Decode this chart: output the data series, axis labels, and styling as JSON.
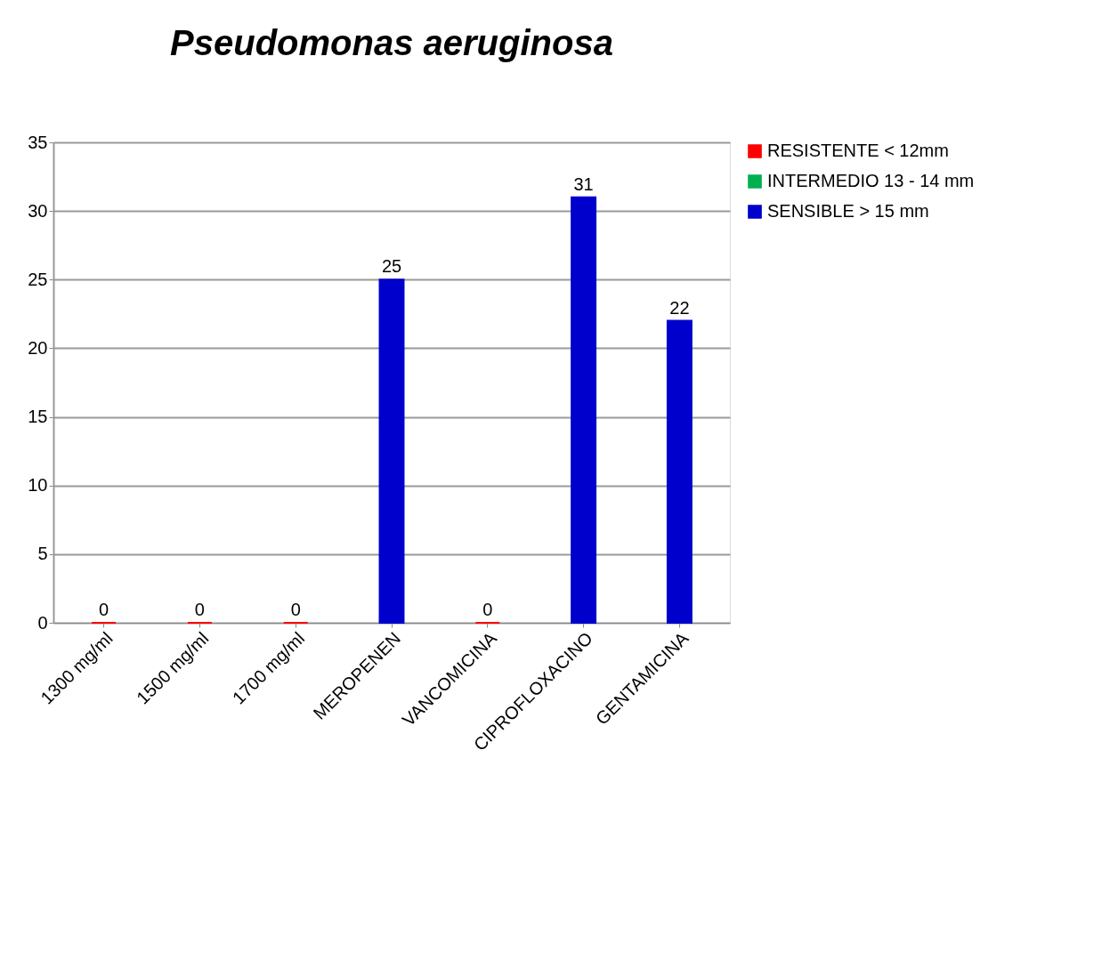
{
  "chart_data": {
    "type": "bar",
    "title": "Pseudomonas aeruginosa",
    "categories": [
      "1300 mg/ml",
      "1500 mg/ml",
      "1700 mg/ml",
      "MEROPENEN",
      "VANCOMICINA",
      "CIPROFLOXACINO",
      "GENTAMICINA"
    ],
    "series": [
      {
        "name": "RESISTENTE < 12mm",
        "color": "#ff0000",
        "values": [
          0,
          0,
          0,
          null,
          0,
          null,
          null
        ]
      },
      {
        "name": "INTERMEDIO 13 - 14 mm",
        "color": "#00b050",
        "values": [
          null,
          null,
          null,
          null,
          null,
          null,
          null
        ]
      },
      {
        "name": "SENSIBLE > 15 mm",
        "color": "#0000cc",
        "values": [
          null,
          null,
          null,
          25,
          null,
          31,
          22
        ]
      }
    ],
    "ylim": [
      0,
      35
    ],
    "yticks": [
      0,
      5,
      10,
      15,
      20,
      25,
      30,
      35
    ],
    "grid": "y",
    "legend": "right",
    "data_labels": true
  }
}
